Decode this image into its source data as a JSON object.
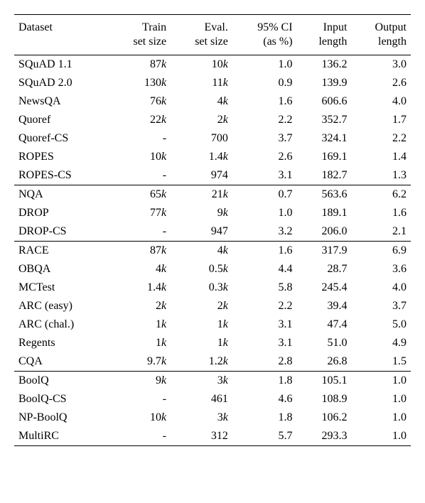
{
  "headers": {
    "dataset": "Dataset",
    "train_l1": "Train",
    "train_l2": "set size",
    "eval_l1": "Eval.",
    "eval_l2": "set size",
    "ci_l1": "95% CI",
    "ci_l2": "(as %)",
    "in_l1": "Input",
    "in_l2": "length",
    "out_l1": "Output",
    "out_l2": "length"
  },
  "groups": [
    {
      "rows": [
        {
          "name": "SQuAD 1.1",
          "train_n": "87",
          "train_k": true,
          "eval_n": "10",
          "eval_k": true,
          "ci": "1.0",
          "in": "136.2",
          "out": "3.0"
        },
        {
          "name": "SQuAD 2.0",
          "train_n": "130",
          "train_k": true,
          "eval_n": "11",
          "eval_k": true,
          "ci": "0.9",
          "in": "139.9",
          "out": "2.6"
        },
        {
          "name": "NewsQA",
          "train_n": "76",
          "train_k": true,
          "eval_n": "4",
          "eval_k": true,
          "ci": "1.6",
          "in": "606.6",
          "out": "4.0"
        },
        {
          "name": "Quoref",
          "train_n": "22",
          "train_k": true,
          "eval_n": "2",
          "eval_k": true,
          "ci": "2.2",
          "in": "352.7",
          "out": "1.7"
        },
        {
          "name": "Quoref-CS",
          "train_n": "-",
          "train_k": false,
          "eval_n": "700",
          "eval_k": false,
          "ci": "3.7",
          "in": "324.1",
          "out": "2.2"
        },
        {
          "name": "ROPES",
          "train_n": "10",
          "train_k": true,
          "eval_n": "1.4",
          "eval_k": true,
          "ci": "2.6",
          "in": "169.1",
          "out": "1.4"
        },
        {
          "name": "ROPES-CS",
          "train_n": "-",
          "train_k": false,
          "eval_n": "974",
          "eval_k": false,
          "ci": "3.1",
          "in": "182.7",
          "out": "1.3"
        }
      ]
    },
    {
      "rows": [
        {
          "name": "NQA",
          "train_n": "65",
          "train_k": true,
          "eval_n": "21",
          "eval_k": true,
          "ci": "0.7",
          "in": "563.6",
          "out": "6.2"
        },
        {
          "name": "DROP",
          "train_n": "77",
          "train_k": true,
          "eval_n": "9",
          "eval_k": true,
          "ci": "1.0",
          "in": "189.1",
          "out": "1.6"
        },
        {
          "name": "DROP-CS",
          "train_n": "-",
          "train_k": false,
          "eval_n": "947",
          "eval_k": false,
          "ci": "3.2",
          "in": "206.0",
          "out": "2.1"
        }
      ]
    },
    {
      "rows": [
        {
          "name": "RACE",
          "train_n": "87",
          "train_k": true,
          "eval_n": "4",
          "eval_k": true,
          "ci": "1.6",
          "in": "317.9",
          "out": "6.9"
        },
        {
          "name": "OBQA",
          "train_n": "4",
          "train_k": true,
          "eval_n": "0.5",
          "eval_k": true,
          "ci": "4.4",
          "in": "28.7",
          "out": "3.6"
        },
        {
          "name": "MCTest",
          "train_n": "1.4",
          "train_k": true,
          "eval_n": "0.3",
          "eval_k": true,
          "ci": "5.8",
          "in": "245.4",
          "out": "4.0"
        },
        {
          "name": "ARC (easy)",
          "train_n": "2",
          "train_k": true,
          "eval_n": "2",
          "eval_k": true,
          "ci": "2.2",
          "in": "39.4",
          "out": "3.7"
        },
        {
          "name": "ARC (chal.)",
          "train_n": "1",
          "train_k": true,
          "eval_n": "1",
          "eval_k": true,
          "ci": "3.1",
          "in": "47.4",
          "out": "5.0"
        },
        {
          "name": "Regents",
          "train_n": "1",
          "train_k": true,
          "eval_n": "1",
          "eval_k": true,
          "ci": "3.1",
          "in": "51.0",
          "out": "4.9"
        },
        {
          "name": "CQA",
          "train_n": "9.7",
          "train_k": true,
          "eval_n": "1.2",
          "eval_k": true,
          "ci": "2.8",
          "in": "26.8",
          "out": "1.5"
        }
      ]
    },
    {
      "rows": [
        {
          "name": "BoolQ",
          "train_n": "9",
          "train_k": true,
          "eval_n": "3",
          "eval_k": true,
          "ci": "1.8",
          "in": "105.1",
          "out": "1.0"
        },
        {
          "name": "BoolQ-CS",
          "train_n": "-",
          "train_k": false,
          "eval_n": "461",
          "eval_k": false,
          "ci": "4.6",
          "in": "108.9",
          "out": "1.0"
        },
        {
          "name": "NP-BoolQ",
          "train_n": "10",
          "train_k": true,
          "eval_n": "3",
          "eval_k": true,
          "ci": "1.8",
          "in": "106.2",
          "out": "1.0"
        },
        {
          "name": "MultiRC",
          "train_n": "-",
          "train_k": false,
          "eval_n": "312",
          "eval_k": false,
          "ci": "5.7",
          "in": "293.3",
          "out": "1.0"
        }
      ]
    }
  ]
}
